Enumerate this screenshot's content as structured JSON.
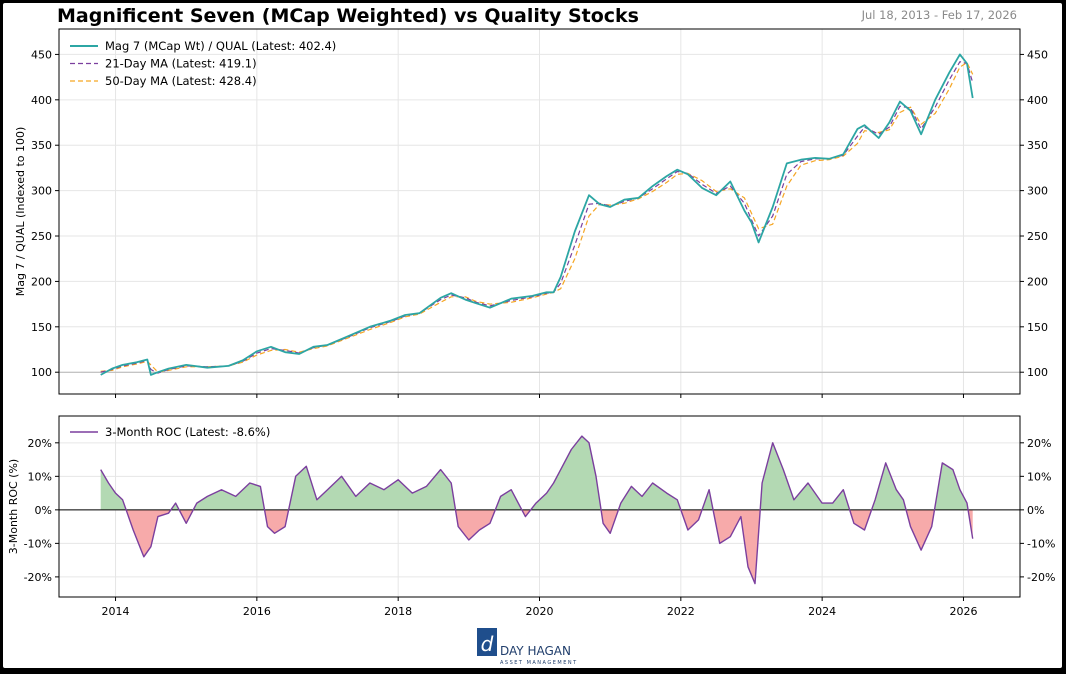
{
  "page": {
    "title": "Magnificent Seven (MCap Weighted) vs Quality Stocks",
    "date_range": "Jul 18, 2013 - Feb 17, 2026",
    "logo": {
      "name": "DAY HAGAN",
      "tagline": "ASSET MANAGEMENT"
    }
  },
  "colors": {
    "ratio": "#2ca6a4",
    "ma21": "#7b3f9e",
    "ma50": "#f5a623",
    "roc": "#7b3f9e",
    "positive_fill": "#b3d9b3",
    "negative_fill": "#f7aaaa"
  },
  "chart_data": [
    {
      "type": "line",
      "ylabel": "Mag 7 / QUAL (Indexed to 100)",
      "ylim": [
        76,
        478
      ],
      "yticks": [
        100,
        150,
        200,
        250,
        300,
        350,
        400,
        450
      ],
      "xlim": [
        2013.2,
        2026.8
      ],
      "xticks": [
        2014,
        2016,
        2018,
        2020,
        2022,
        2024,
        2026
      ],
      "xtick_labels": [
        "2014",
        "2016",
        "2018",
        "2020",
        "2022",
        "2024",
        "2026"
      ],
      "grid": true,
      "legend_position": "top-left",
      "reference_line": 100,
      "x": [
        2013.79,
        2013.95,
        2014.1,
        2014.3,
        2014.45,
        2014.5,
        2014.6,
        2014.75,
        2015.0,
        2015.3,
        2015.6,
        2015.8,
        2016.0,
        2016.2,
        2016.4,
        2016.6,
        2016.8,
        2017.0,
        2017.3,
        2017.6,
        2017.9,
        2018.1,
        2018.3,
        2018.6,
        2018.75,
        2018.95,
        2019.1,
        2019.3,
        2019.6,
        2019.9,
        2020.1,
        2020.2,
        2020.3,
        2020.5,
        2020.7,
        2020.85,
        2021.0,
        2021.2,
        2021.4,
        2021.6,
        2021.8,
        2021.95,
        2022.1,
        2022.3,
        2022.5,
        2022.7,
        2022.9,
        2023.0,
        2023.1,
        2023.3,
        2023.5,
        2023.7,
        2023.9,
        2024.1,
        2024.3,
        2024.5,
        2024.6,
        2024.8,
        2024.95,
        2025.1,
        2025.25,
        2025.4,
        2025.6,
        2025.8,
        2025.95,
        2026.05,
        2026.13
      ],
      "series": [
        {
          "name": "Mag 7 (MCap Wt) / QUAL (Latest: 402.4)",
          "values": [
            97,
            104,
            108,
            111,
            114,
            97,
            100,
            104,
            108,
            105,
            107,
            113,
            123,
            128,
            122,
            120,
            128,
            130,
            140,
            150,
            157,
            163,
            165,
            182,
            187,
            180,
            176,
            171,
            181,
            184,
            188,
            188,
            205,
            255,
            295,
            285,
            282,
            290,
            292,
            305,
            316,
            323,
            318,
            303,
            295,
            310,
            278,
            265,
            243,
            282,
            330,
            334,
            336,
            335,
            340,
            368,
            372,
            358,
            375,
            398,
            388,
            362,
            400,
            430,
            450,
            440,
            402
          ],
          "style": "solid"
        },
        {
          "name": "21-Day MA (Latest: 419.1)",
          "values": [
            100,
            103,
            107,
            110,
            113,
            103,
            99,
            103,
            107,
            106,
            107,
            112,
            121,
            126,
            124,
            121,
            127,
            130,
            139,
            149,
            156,
            162,
            165,
            180,
            185,
            182,
            177,
            173,
            179,
            183,
            187,
            188,
            198,
            240,
            285,
            286,
            283,
            288,
            292,
            302,
            313,
            321,
            319,
            307,
            297,
            305,
            286,
            268,
            250,
            272,
            318,
            332,
            335,
            335,
            339,
            360,
            370,
            362,
            370,
            393,
            391,
            368,
            392,
            422,
            442,
            440,
            419
          ],
          "style": "dashed"
        },
        {
          "name": "50-Day MA (Latest: 428.4)",
          "values": [
            101,
            102,
            106,
            109,
            112,
            108,
            100,
            102,
            106,
            106,
            107,
            111,
            119,
            124,
            125,
            122,
            126,
            129,
            138,
            147,
            155,
            161,
            164,
            177,
            183,
            183,
            178,
            175,
            177,
            182,
            186,
            188,
            192,
            225,
            272,
            285,
            284,
            286,
            291,
            299,
            309,
            318,
            319,
            311,
            299,
            302,
            292,
            275,
            258,
            263,
            305,
            328,
            333,
            334,
            338,
            352,
            366,
            364,
            367,
            386,
            392,
            373,
            385,
            412,
            436,
            441,
            428
          ],
          "style": "dashed"
        }
      ]
    },
    {
      "type": "area",
      "ylabel": "3-Month ROC (%)",
      "ylim": [
        -26,
        28
      ],
      "yticks": [
        -20,
        -10,
        0,
        10,
        20
      ],
      "ytick_labels": [
        "-20%",
        "-10%",
        "0%",
        "10%",
        "20%"
      ],
      "grid": true,
      "legend_position": "top-left",
      "x": [
        2013.79,
        2013.9,
        2014.0,
        2014.1,
        2014.25,
        2014.4,
        2014.5,
        2014.6,
        2014.75,
        2014.85,
        2015.0,
        2015.15,
        2015.3,
        2015.5,
        2015.7,
        2015.9,
        2016.05,
        2016.15,
        2016.25,
        2016.4,
        2016.55,
        2016.7,
        2016.85,
        2017.0,
        2017.2,
        2017.4,
        2017.6,
        2017.8,
        2018.0,
        2018.2,
        2018.4,
        2018.6,
        2018.75,
        2018.85,
        2019.0,
        2019.15,
        2019.3,
        2019.45,
        2019.6,
        2019.8,
        2019.95,
        2020.1,
        2020.2,
        2020.3,
        2020.45,
        2020.6,
        2020.7,
        2020.8,
        2020.9,
        2021.0,
        2021.15,
        2021.3,
        2021.45,
        2021.6,
        2021.8,
        2021.95,
        2022.1,
        2022.25,
        2022.4,
        2022.55,
        2022.7,
        2022.85,
        2022.95,
        2023.05,
        2023.15,
        2023.3,
        2023.45,
        2023.6,
        2023.8,
        2024.0,
        2024.15,
        2024.3,
        2024.45,
        2024.6,
        2024.75,
        2024.9,
        2025.05,
        2025.15,
        2025.25,
        2025.4,
        2025.55,
        2025.7,
        2025.85,
        2025.95,
        2026.05,
        2026.13
      ],
      "series": [
        {
          "name": "3-Month ROC (Latest: -8.6%)",
          "values": [
            12,
            8,
            5,
            3,
            -6,
            -14,
            -11,
            -2,
            -1,
            2,
            -4,
            2,
            4,
            6,
            4,
            8,
            7,
            -5,
            -7,
            -5,
            10,
            13,
            3,
            6,
            10,
            4,
            8,
            6,
            9,
            5,
            7,
            12,
            8,
            -5,
            -9,
            -6,
            -4,
            4,
            6,
            -2,
            2,
            5,
            8,
            12,
            18,
            22,
            20,
            10,
            -4,
            -7,
            2,
            7,
            4,
            8,
            5,
            3,
            -6,
            -3,
            6,
            -10,
            -8,
            -2,
            -17,
            -22,
            8,
            20,
            12,
            3,
            8,
            2,
            2,
            6,
            -4,
            -6,
            3,
            14,
            6,
            3,
            -5,
            -12,
            -5,
            14,
            12,
            6,
            2,
            -8.6
          ],
          "style": "solid"
        }
      ]
    }
  ]
}
